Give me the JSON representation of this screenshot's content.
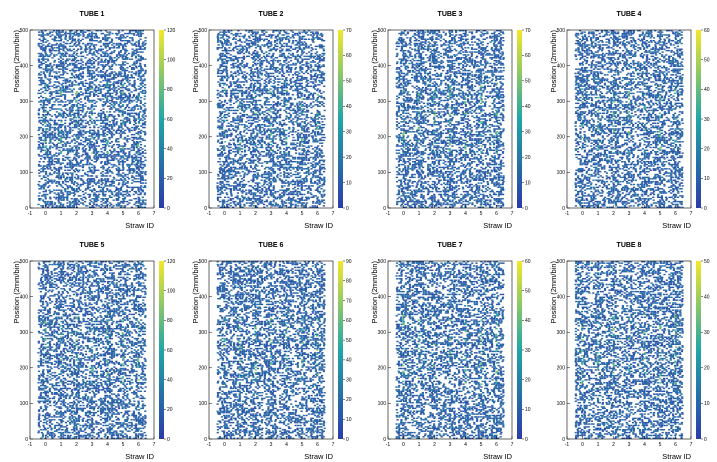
{
  "chart_data": [
    {
      "type": "heatmap",
      "title": "TUBE 1",
      "xlabel": "Straw ID",
      "ylabel": "Position (2mm/bin)",
      "xlim": [
        -1,
        7
      ],
      "ylim": [
        0,
        500
      ],
      "xticks": [
        "-1",
        "0",
        "1",
        "2",
        "3",
        "4",
        "5",
        "6",
        "7"
      ],
      "yticks": [
        "0",
        "100",
        "200",
        "300",
        "400",
        "500"
      ],
      "zmax": 120,
      "zticks": [
        "0",
        "20",
        "40",
        "60",
        "80",
        "100",
        "120"
      ],
      "straws": [
        0,
        1,
        2,
        3,
        4,
        5,
        6
      ]
    },
    {
      "type": "heatmap",
      "title": "TUBE 2",
      "xlabel": "Straw ID",
      "ylabel": "Position (2mm/bin)",
      "xlim": [
        -1,
        7
      ],
      "ylim": [
        0,
        500
      ],
      "xticks": [
        "-1",
        "0",
        "1",
        "2",
        "3",
        "4",
        "5",
        "6",
        "7"
      ],
      "yticks": [
        "0",
        "100",
        "200",
        "300",
        "400",
        "500"
      ],
      "zmax": 70,
      "zticks": [
        "0",
        "10",
        "20",
        "30",
        "40",
        "50",
        "60",
        "70"
      ],
      "straws": [
        0,
        1,
        2,
        3,
        4,
        5,
        6
      ]
    },
    {
      "type": "heatmap",
      "title": "TUBE 3",
      "xlabel": "Straw ID",
      "ylabel": "Position (2mm/bin)",
      "xlim": [
        -1,
        7
      ],
      "ylim": [
        0,
        500
      ],
      "xticks": [
        "-1",
        "0",
        "1",
        "2",
        "3",
        "4",
        "5",
        "6",
        "7"
      ],
      "yticks": [
        "0",
        "100",
        "200",
        "300",
        "400",
        "500"
      ],
      "zmax": 70,
      "zticks": [
        "0",
        "10",
        "20",
        "30",
        "40",
        "50",
        "60",
        "70"
      ],
      "straws": [
        0,
        1,
        2,
        3,
        4,
        5,
        6
      ]
    },
    {
      "type": "heatmap",
      "title": "TUBE 4",
      "xlabel": "Straw ID",
      "ylabel": "Position (2mm/bin)",
      "xlim": [
        -1,
        7
      ],
      "ylim": [
        0,
        500
      ],
      "xticks": [
        "-1",
        "0",
        "1",
        "2",
        "3",
        "4",
        "5",
        "6",
        "7"
      ],
      "yticks": [
        "0",
        "100",
        "200",
        "300",
        "400",
        "500"
      ],
      "zmax": 60,
      "zticks": [
        "0",
        "10",
        "20",
        "30",
        "40",
        "50",
        "60"
      ],
      "straws": [
        0,
        1,
        2,
        3,
        4,
        5,
        6
      ]
    },
    {
      "type": "heatmap",
      "title": "TUBE 5",
      "xlabel": "Straw ID",
      "ylabel": "Position (2mm/bin)",
      "xlim": [
        -1,
        7
      ],
      "ylim": [
        0,
        500
      ],
      "xticks": [
        "-1",
        "0",
        "1",
        "2",
        "3",
        "4",
        "5",
        "6",
        "7"
      ],
      "yticks": [
        "0",
        "100",
        "200",
        "300",
        "400",
        "500"
      ],
      "zmax": 120,
      "zticks": [
        "0",
        "20",
        "40",
        "60",
        "80",
        "100",
        "120"
      ],
      "straws": [
        0,
        1,
        2,
        3,
        4,
        5,
        6
      ]
    },
    {
      "type": "heatmap",
      "title": "TUBE 6",
      "xlabel": "Straw ID",
      "ylabel": "Position (2mm/bin)",
      "xlim": [
        -1,
        7
      ],
      "ylim": [
        0,
        500
      ],
      "xticks": [
        "-1",
        "0",
        "1",
        "2",
        "3",
        "4",
        "5",
        "6",
        "7"
      ],
      "yticks": [
        "0",
        "100",
        "200",
        "300",
        "400",
        "500"
      ],
      "zmax": 90,
      "zticks": [
        "0",
        "10",
        "20",
        "30",
        "40",
        "50",
        "60",
        "70",
        "80",
        "90"
      ],
      "straws": [
        0,
        1,
        2,
        3,
        4,
        5,
        6
      ]
    },
    {
      "type": "heatmap",
      "title": "TUBE 7",
      "xlabel": "Straw ID",
      "ylabel": "Position (2mm/bin)",
      "xlim": [
        -1,
        7
      ],
      "ylim": [
        0,
        500
      ],
      "xticks": [
        "-1",
        "0",
        "1",
        "2",
        "3",
        "4",
        "5",
        "6",
        "7"
      ],
      "yticks": [
        "0",
        "100",
        "200",
        "300",
        "400",
        "500"
      ],
      "zmax": 60,
      "zticks": [
        "0",
        "10",
        "20",
        "30",
        "40",
        "50",
        "60"
      ],
      "straws": [
        0,
        1,
        2,
        3,
        4,
        5,
        6
      ]
    },
    {
      "type": "heatmap",
      "title": "TUBE 8",
      "xlabel": "Straw ID",
      "ylabel": "Position (2mm/bin)",
      "xlim": [
        -1,
        7
      ],
      "ylim": [
        0,
        500
      ],
      "xticks": [
        "-1",
        "0",
        "1",
        "2",
        "3",
        "4",
        "5",
        "6",
        "7"
      ],
      "yticks": [
        "0",
        "100",
        "200",
        "300",
        "400",
        "500"
      ],
      "zmax": 50,
      "zticks": [
        "0",
        "10",
        "20",
        "30",
        "40",
        "50"
      ],
      "straws": [
        0,
        1,
        2,
        3,
        4,
        5,
        6
      ]
    }
  ],
  "colors": {
    "low": "#2b3ca8",
    "mid": "#21a6a6",
    "high": "#f3e829"
  }
}
